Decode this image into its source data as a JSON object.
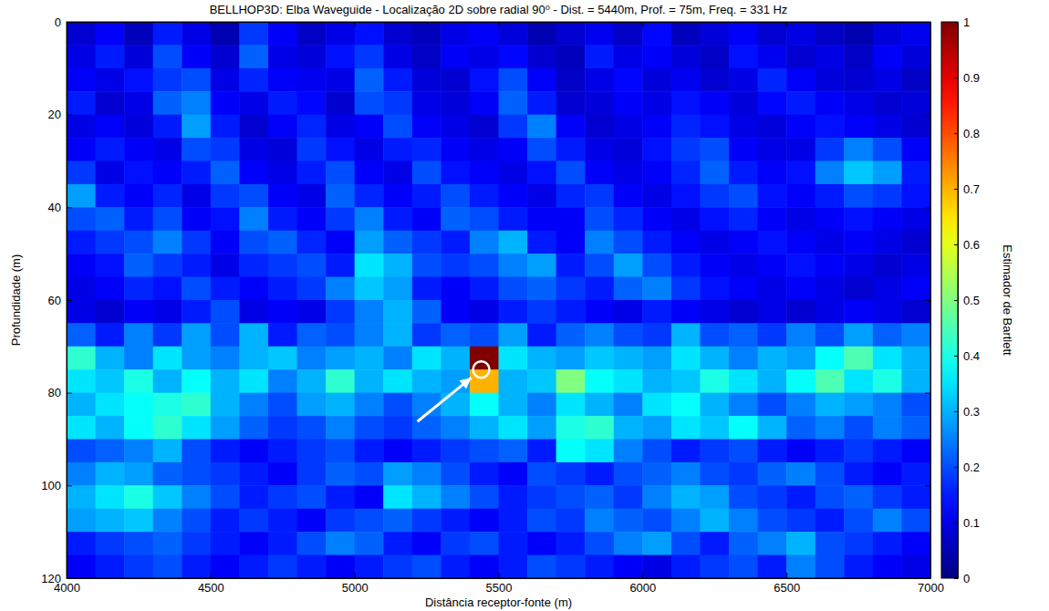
{
  "chart_data": {
    "type": "heatmap",
    "title": "BELLHOP3D: Elba Waveguide - Localização 2D sobre radial 90⁰ - Dist. = 5440m, Prof. = 75m, Freq. = 331 Hz",
    "x_label": "Distância receptor-fonte (m)",
    "y_label": "Profundidade (m)",
    "xlim": [
      4000,
      7000
    ],
    "xticks": [
      4000,
      4500,
      5000,
      5500,
      6000,
      6500,
      7000
    ],
    "ylim": [
      120,
      0
    ],
    "yticks": [
      0,
      20,
      40,
      60,
      80,
      100,
      120
    ],
    "peak": {
      "x": 5440,
      "y": 75
    },
    "colorbar": {
      "label": "Estimador de Bartlett",
      "range": [
        0,
        1
      ],
      "ticks": [
        0,
        0.1,
        0.2,
        0.3,
        0.4,
        0.5,
        0.6,
        0.7,
        0.8,
        0.9,
        1
      ]
    },
    "cells": {
      "x": [
        4050,
        4150,
        4250,
        4350,
        4450,
        4550,
        4650,
        4750,
        4850,
        4950,
        5050,
        5150,
        5250,
        5350,
        5450,
        5550,
        5650,
        5750,
        5850,
        5950,
        6050,
        6150,
        6250,
        6350,
        6450,
        6550,
        6650,
        6750,
        6850,
        6950
      ],
      "y": [
        2.5,
        7.5,
        12.5,
        17.5,
        22.5,
        27.5,
        32.5,
        37.5,
        42.5,
        47.5,
        52.5,
        57.5,
        62.5,
        67.5,
        72.5,
        77.5,
        82.5,
        87.5,
        92.5,
        97.5,
        102.5,
        107.5,
        112.5,
        117.5
      ],
      "z": [
        [
          0.08,
          0.12,
          0.06,
          0.15,
          0.1,
          0.05,
          0.18,
          0.12,
          0.07,
          0.1,
          0.14,
          0.08,
          0.06,
          0.1,
          0.12,
          0.09,
          0.05,
          0.08,
          0.11,
          0.07,
          0.13,
          0.06,
          0.09,
          0.12,
          0.08,
          0.1,
          0.07,
          0.05,
          0.09,
          0.11
        ],
        [
          0.1,
          0.15,
          0.09,
          0.2,
          0.12,
          0.08,
          0.22,
          0.1,
          0.09,
          0.14,
          0.18,
          0.1,
          0.07,
          0.12,
          0.1,
          0.13,
          0.08,
          0.06,
          0.15,
          0.1,
          0.12,
          0.09,
          0.07,
          0.14,
          0.11,
          0.08,
          0.1,
          0.07,
          0.12,
          0.09
        ],
        [
          0.12,
          0.1,
          0.14,
          0.18,
          0.2,
          0.1,
          0.16,
          0.12,
          0.11,
          0.1,
          0.22,
          0.15,
          0.09,
          0.08,
          0.14,
          0.2,
          0.12,
          0.07,
          0.1,
          0.13,
          0.09,
          0.11,
          0.08,
          0.1,
          0.16,
          0.12,
          0.09,
          0.08,
          0.1,
          0.07
        ],
        [
          0.15,
          0.08,
          0.1,
          0.22,
          0.25,
          0.12,
          0.1,
          0.15,
          0.13,
          0.08,
          0.2,
          0.18,
          0.1,
          0.09,
          0.12,
          0.22,
          0.15,
          0.08,
          0.09,
          0.12,
          0.1,
          0.14,
          0.12,
          0.09,
          0.13,
          0.15,
          0.12,
          0.1,
          0.08,
          0.09
        ],
        [
          0.1,
          0.12,
          0.09,
          0.15,
          0.28,
          0.15,
          0.08,
          0.12,
          0.16,
          0.1,
          0.12,
          0.2,
          0.12,
          0.1,
          0.08,
          0.18,
          0.25,
          0.12,
          0.08,
          0.1,
          0.12,
          0.16,
          0.14,
          0.1,
          0.09,
          0.12,
          0.14,
          0.12,
          0.1,
          0.08
        ],
        [
          0.12,
          0.15,
          0.12,
          0.1,
          0.2,
          0.18,
          0.1,
          0.09,
          0.18,
          0.14,
          0.1,
          0.15,
          0.16,
          0.12,
          0.1,
          0.12,
          0.2,
          0.15,
          0.1,
          0.09,
          0.14,
          0.18,
          0.2,
          0.12,
          0.1,
          0.1,
          0.18,
          0.25,
          0.2,
          0.12
        ],
        [
          0.18,
          0.1,
          0.14,
          0.12,
          0.15,
          0.22,
          0.12,
          0.1,
          0.15,
          0.2,
          0.12,
          0.1,
          0.2,
          0.14,
          0.12,
          0.1,
          0.14,
          0.2,
          0.12,
          0.1,
          0.12,
          0.16,
          0.22,
          0.15,
          0.12,
          0.14,
          0.25,
          0.32,
          0.28,
          0.15
        ],
        [
          0.28,
          0.15,
          0.12,
          0.16,
          0.1,
          0.18,
          0.2,
          0.12,
          0.1,
          0.22,
          0.16,
          0.12,
          0.15,
          0.2,
          0.15,
          0.12,
          0.1,
          0.16,
          0.18,
          0.12,
          0.1,
          0.14,
          0.18,
          0.2,
          0.14,
          0.12,
          0.15,
          0.2,
          0.18,
          0.14
        ],
        [
          0.2,
          0.22,
          0.15,
          0.2,
          0.12,
          0.14,
          0.25,
          0.15,
          0.12,
          0.18,
          0.25,
          0.15,
          0.12,
          0.22,
          0.2,
          0.15,
          0.12,
          0.12,
          0.2,
          0.16,
          0.12,
          0.1,
          0.14,
          0.16,
          0.12,
          0.1,
          0.12,
          0.14,
          0.12,
          0.1
        ],
        [
          0.15,
          0.18,
          0.2,
          0.25,
          0.18,
          0.12,
          0.2,
          0.22,
          0.16,
          0.12,
          0.28,
          0.22,
          0.18,
          0.15,
          0.25,
          0.3,
          0.15,
          0.12,
          0.25,
          0.2,
          0.15,
          0.12,
          0.1,
          0.12,
          0.14,
          0.12,
          0.1,
          0.12,
          0.1,
          0.08
        ],
        [
          0.12,
          0.14,
          0.22,
          0.18,
          0.15,
          0.1,
          0.16,
          0.18,
          0.2,
          0.15,
          0.35,
          0.3,
          0.2,
          0.18,
          0.2,
          0.25,
          0.28,
          0.15,
          0.2,
          0.28,
          0.2,
          0.15,
          0.12,
          0.1,
          0.12,
          0.14,
          0.12,
          0.1,
          0.08,
          0.1
        ],
        [
          0.1,
          0.12,
          0.16,
          0.14,
          0.2,
          0.15,
          0.12,
          0.15,
          0.18,
          0.25,
          0.32,
          0.28,
          0.15,
          0.12,
          0.15,
          0.2,
          0.22,
          0.18,
          0.15,
          0.22,
          0.25,
          0.18,
          0.14,
          0.12,
          0.1,
          0.12,
          0.1,
          0.08,
          0.1,
          0.12
        ],
        [
          0.1,
          0.08,
          0.12,
          0.1,
          0.15,
          0.2,
          0.1,
          0.12,
          0.1,
          0.18,
          0.25,
          0.3,
          0.22,
          0.12,
          0.1,
          0.15,
          0.18,
          0.15,
          0.12,
          0.1,
          0.15,
          0.12,
          0.1,
          0.08,
          0.1,
          0.08,
          0.1,
          0.12,
          0.1,
          0.08
        ],
        [
          0.22,
          0.15,
          0.25,
          0.18,
          0.28,
          0.2,
          0.3,
          0.15,
          0.22,
          0.2,
          0.25,
          0.3,
          0.18,
          0.22,
          0.2,
          0.28,
          0.15,
          0.22,
          0.25,
          0.2,
          0.18,
          0.3,
          0.2,
          0.22,
          0.18,
          0.25,
          0.2,
          0.28,
          0.22,
          0.25
        ],
        [
          0.42,
          0.3,
          0.25,
          0.35,
          0.28,
          0.25,
          0.3,
          0.32,
          0.25,
          0.28,
          0.3,
          0.25,
          0.35,
          0.3,
          1.0,
          0.35,
          0.3,
          0.28,
          0.32,
          0.3,
          0.28,
          0.35,
          0.3,
          0.25,
          0.3,
          0.28,
          0.38,
          0.45,
          0.35,
          0.3
        ],
        [
          0.35,
          0.32,
          0.4,
          0.3,
          0.38,
          0.3,
          0.35,
          0.25,
          0.3,
          0.42,
          0.3,
          0.35,
          0.3,
          0.28,
          0.7,
          0.3,
          0.32,
          0.5,
          0.38,
          0.35,
          0.3,
          0.32,
          0.4,
          0.35,
          0.3,
          0.38,
          0.45,
          0.35,
          0.4,
          0.3
        ],
        [
          0.3,
          0.35,
          0.38,
          0.4,
          0.42,
          0.3,
          0.25,
          0.2,
          0.28,
          0.3,
          0.25,
          0.2,
          0.25,
          0.3,
          0.38,
          0.3,
          0.25,
          0.35,
          0.3,
          0.25,
          0.35,
          0.38,
          0.3,
          0.25,
          0.2,
          0.25,
          0.3,
          0.28,
          0.25,
          0.2
        ],
        [
          0.35,
          0.3,
          0.38,
          0.42,
          0.35,
          0.28,
          0.22,
          0.18,
          0.2,
          0.25,
          0.2,
          0.18,
          0.22,
          0.25,
          0.3,
          0.35,
          0.28,
          0.4,
          0.42,
          0.3,
          0.28,
          0.35,
          0.32,
          0.38,
          0.3,
          0.22,
          0.25,
          0.2,
          0.25,
          0.22
        ],
        [
          0.2,
          0.22,
          0.25,
          0.3,
          0.2,
          0.15,
          0.12,
          0.15,
          0.18,
          0.2,
          0.15,
          0.12,
          0.15,
          0.18,
          0.2,
          0.22,
          0.15,
          0.38,
          0.35,
          0.25,
          0.2,
          0.15,
          0.18,
          0.2,
          0.15,
          0.12,
          0.15,
          0.18,
          0.15,
          0.12
        ],
        [
          0.25,
          0.3,
          0.28,
          0.22,
          0.2,
          0.18,
          0.15,
          0.12,
          0.18,
          0.22,
          0.2,
          0.28,
          0.25,
          0.2,
          0.15,
          0.12,
          0.2,
          0.18,
          0.15,
          0.2,
          0.22,
          0.25,
          0.2,
          0.18,
          0.22,
          0.25,
          0.2,
          0.15,
          0.12,
          0.15
        ],
        [
          0.3,
          0.35,
          0.4,
          0.32,
          0.25,
          0.2,
          0.15,
          0.18,
          0.2,
          0.15,
          0.12,
          0.35,
          0.3,
          0.25,
          0.2,
          0.15,
          0.18,
          0.2,
          0.22,
          0.18,
          0.25,
          0.3,
          0.28,
          0.2,
          0.18,
          0.15,
          0.2,
          0.22,
          0.18,
          0.15
        ],
        [
          0.28,
          0.3,
          0.32,
          0.25,
          0.2,
          0.15,
          0.18,
          0.15,
          0.12,
          0.18,
          0.2,
          0.22,
          0.18,
          0.15,
          0.12,
          0.15,
          0.2,
          0.18,
          0.25,
          0.22,
          0.2,
          0.25,
          0.3,
          0.25,
          0.2,
          0.18,
          0.15,
          0.2,
          0.25,
          0.2
        ],
        [
          0.15,
          0.18,
          0.2,
          0.22,
          0.18,
          0.15,
          0.12,
          0.15,
          0.2,
          0.25,
          0.22,
          0.15,
          0.12,
          0.18,
          0.2,
          0.15,
          0.12,
          0.15,
          0.2,
          0.25,
          0.28,
          0.2,
          0.15,
          0.22,
          0.25,
          0.3,
          0.2,
          0.18,
          0.15,
          0.12
        ],
        [
          0.12,
          0.15,
          0.18,
          0.2,
          0.15,
          0.12,
          0.15,
          0.18,
          0.15,
          0.12,
          0.15,
          0.18,
          0.2,
          0.15,
          0.12,
          0.15,
          0.2,
          0.18,
          0.15,
          0.12,
          0.1,
          0.15,
          0.18,
          0.2,
          0.15,
          0.25,
          0.2,
          0.15,
          0.12,
          0.1
        ]
      ]
    }
  }
}
